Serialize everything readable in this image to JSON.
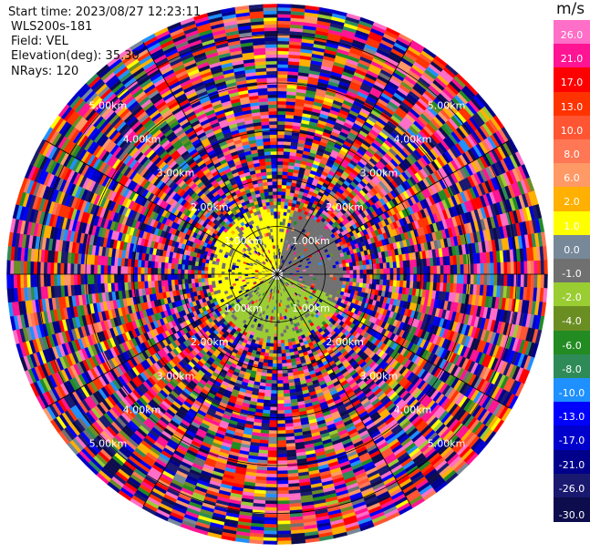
{
  "meta": {
    "start_time": "Start time: 2023/08/27 12:23:11",
    "instrument": "WLS200s-181",
    "field": "Field: VEL",
    "elevation": "Elevation(deg): 35.30",
    "nrays": "NRays: 120"
  },
  "chart_data": {
    "type": "heatmap",
    "projection": "polar-ppi",
    "field": "VEL",
    "unit": "m/s",
    "n_rays": 120,
    "elevation_deg": 35.3,
    "range_rings_km": [
      1.0,
      2.0,
      3.0,
      4.0,
      5.0
    ],
    "range_ring_labels": [
      "1.00km",
      "2.00km",
      "3.00km",
      "4.00km",
      "5.00km"
    ],
    "max_range_km": 5.6,
    "colorbar": {
      "unit": "m/s",
      "tick_labels": [
        "26.0",
        "21.0",
        "17.0",
        "13.0",
        "10.0",
        "8.0",
        "6.0",
        "2.0",
        "1.0",
        "0.0",
        "-1.0",
        "-2.0",
        "-4.0",
        "-6.0",
        "-8.0",
        "-10.0",
        "-13.0",
        "-17.0",
        "-21.0",
        "-26.0",
        "-30.0"
      ],
      "bins": [
        {
          "from": 26,
          "to": 30,
          "color": "#ff6ec7"
        },
        {
          "from": 21,
          "to": 26,
          "color": "#ff1493"
        },
        {
          "from": 17,
          "to": 21,
          "color": "#ff0000"
        },
        {
          "from": 13,
          "to": 17,
          "color": "#ff3300"
        },
        {
          "from": 10,
          "to": 13,
          "color": "#ff5533"
        },
        {
          "from": 8,
          "to": 10,
          "color": "#ff7755"
        },
        {
          "from": 6,
          "to": 8,
          "color": "#ff9966"
        },
        {
          "from": 2,
          "to": 6,
          "color": "#ffb000"
        },
        {
          "from": 1,
          "to": 2,
          "color": "#ffff00"
        },
        {
          "from": 0,
          "to": 1,
          "color": "#778899"
        },
        {
          "from": -1,
          "to": 0,
          "color": "#707070"
        },
        {
          "from": -2,
          "to": -1,
          "color": "#9acd32"
        },
        {
          "from": -4,
          "to": -2,
          "color": "#6b8e23"
        },
        {
          "from": -6,
          "to": -4,
          "color": "#228b22"
        },
        {
          "from": -8,
          "to": -6,
          "color": "#2e8b57"
        },
        {
          "from": -10,
          "to": -8,
          "color": "#1e90ff"
        },
        {
          "from": -13,
          "to": -10,
          "color": "#0000ff"
        },
        {
          "from": -17,
          "to": -13,
          "color": "#0000cd"
        },
        {
          "from": -21,
          "to": -17,
          "color": "#00008b"
        },
        {
          "from": -26,
          "to": -21,
          "color": "#191970"
        },
        {
          "from": -30,
          "to": -26,
          "color": "#0d0d4d"
        }
      ]
    },
    "inner_pattern": {
      "northwest_velocity_ms": 1.5,
      "northeast_velocity_ms": -0.5,
      "south_velocity_ms": -1.5,
      "valid_range_km": 1.4
    }
  }
}
